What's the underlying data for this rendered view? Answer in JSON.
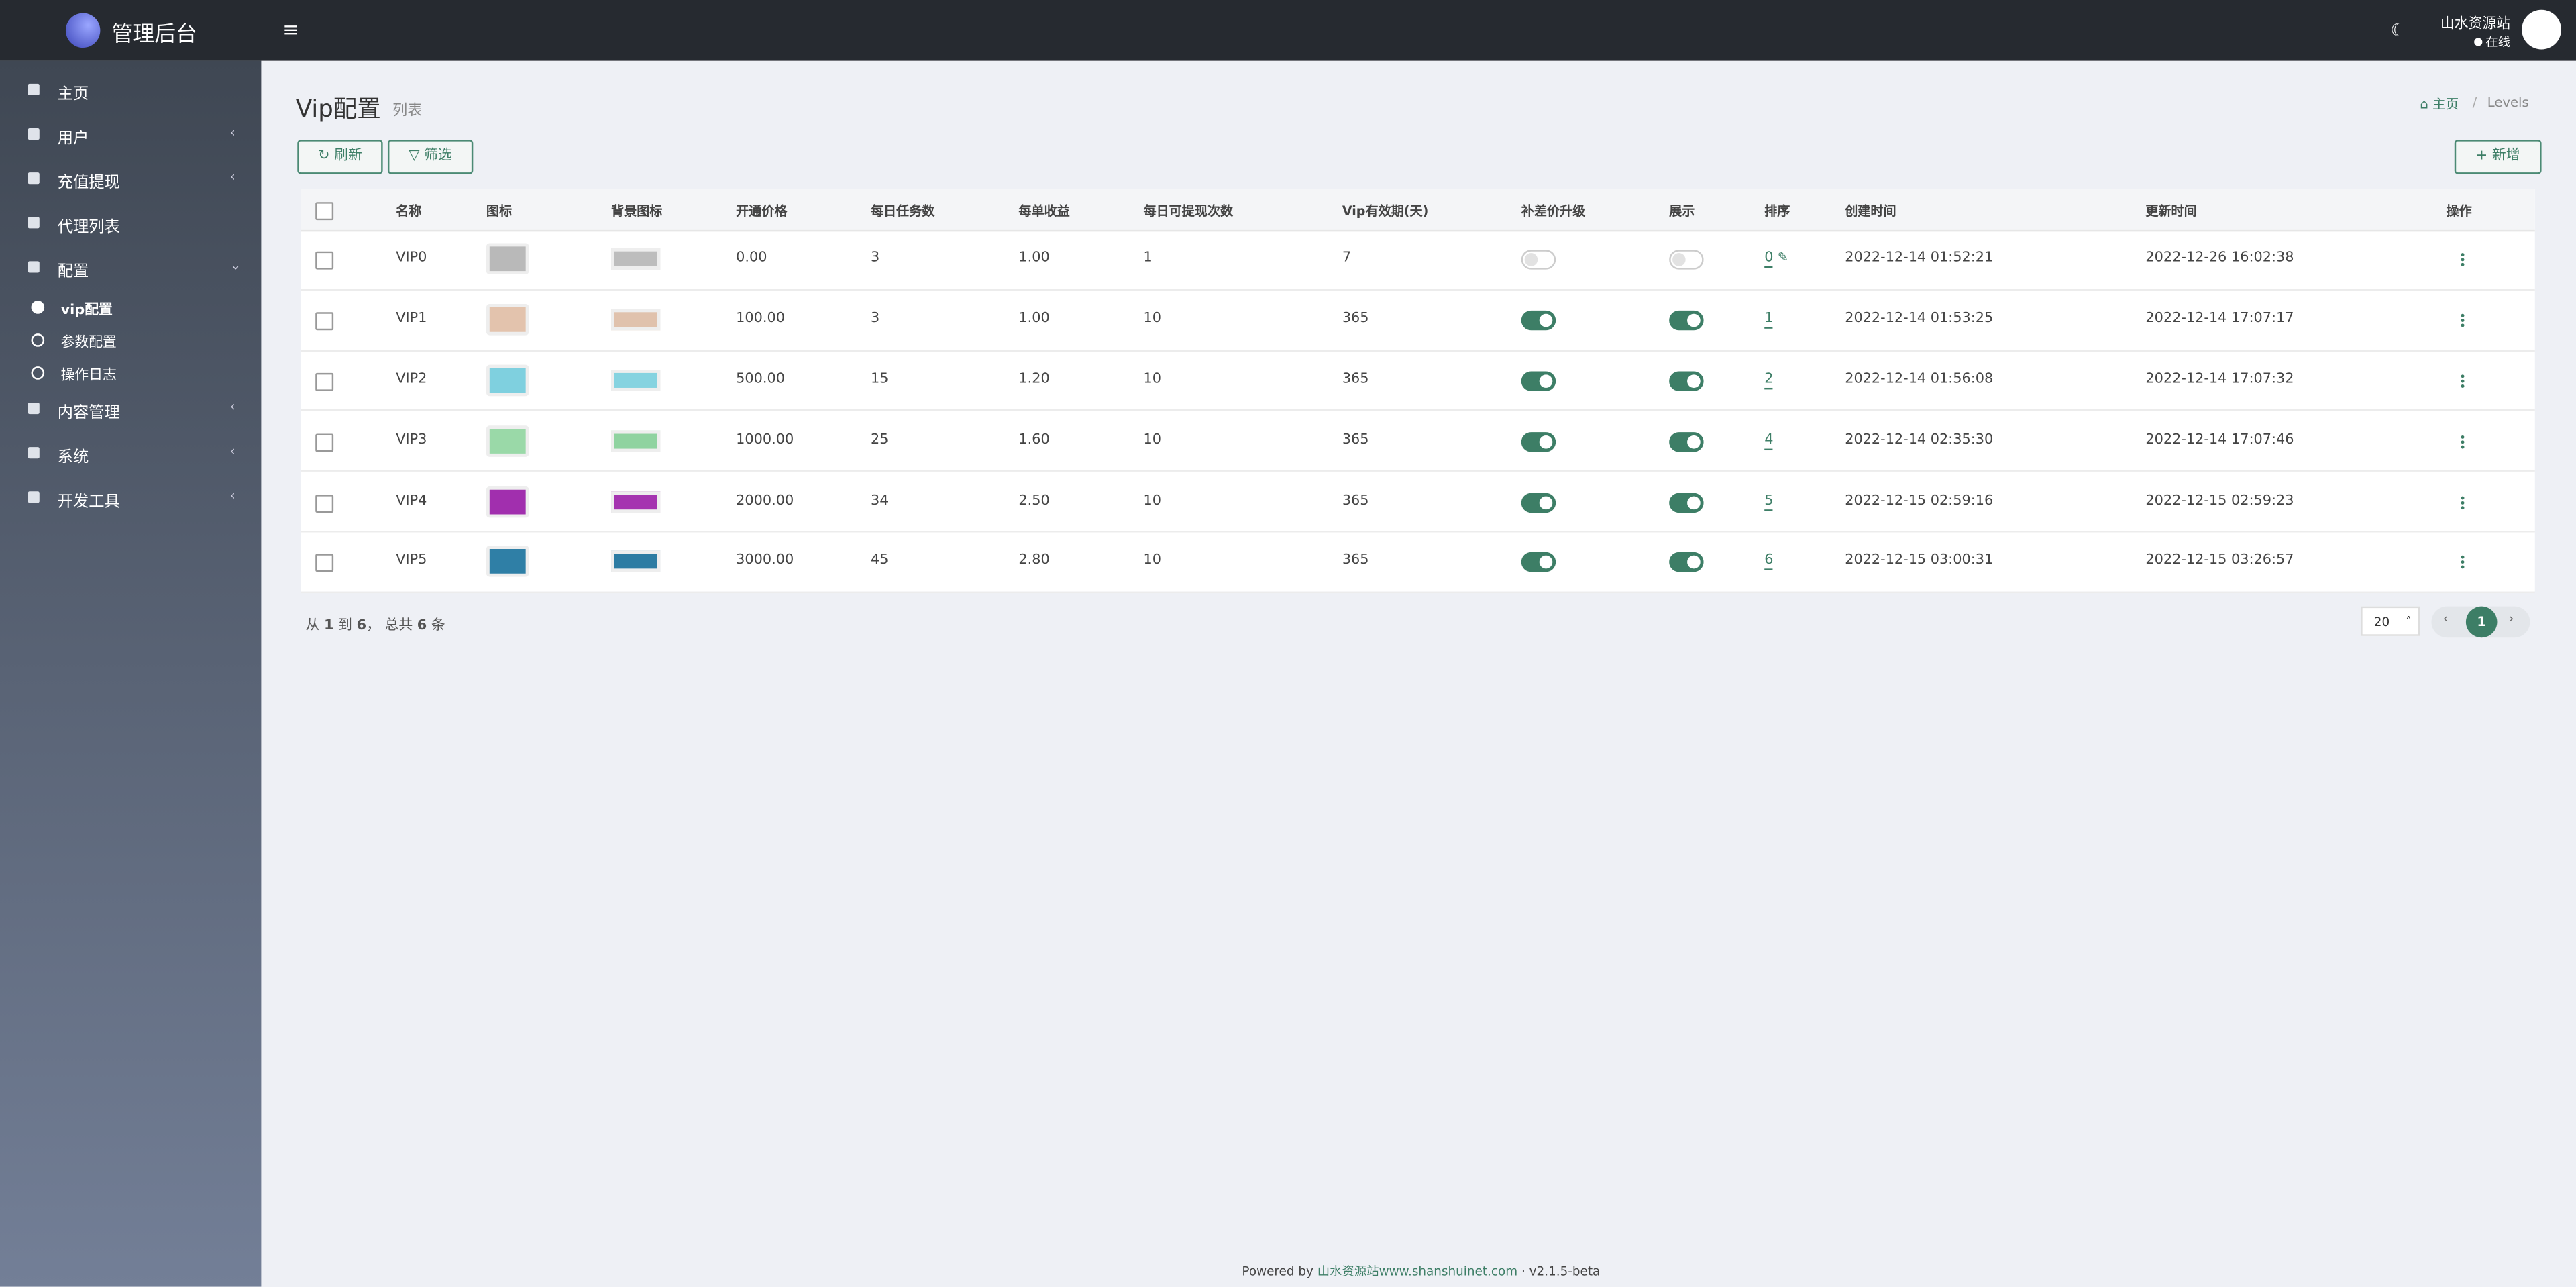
{
  "brand": "管理后台",
  "menu": {
    "items": [
      "主页",
      "用户",
      "充值提现",
      "代理列表",
      "配置",
      "内容管理",
      "系统",
      "开发工具"
    ],
    "sub": [
      "vip配置",
      "参数配置",
      "操作日志"
    ]
  },
  "user": {
    "name": "山水资源站",
    "status": "在线"
  },
  "header": {
    "title": "Vip配置",
    "subtitle": "列表"
  },
  "breadcrumb": [
    "主页",
    "Levels"
  ],
  "toolbar": {
    "refresh": "刷新",
    "filter": "筛选",
    "add": "新增"
  },
  "table": {
    "columns": [
      "名称",
      "图标",
      "背景图标",
      "开通价格",
      "每日任务数",
      "每单收益",
      "每日可提现次数",
      "Vip有效期(天)",
      "补差价升级",
      "展示",
      "排序",
      "创建时间",
      "更新时间",
      "操作"
    ],
    "rows": [
      {
        "name": "VIP0",
        "icon_color": "#b9b9b9",
        "bg_color": "#bdbdbd",
        "price": "0.00",
        "tasks": 3,
        "earning": "1.00",
        "withdraws": 1,
        "days": 7,
        "upgrade": false,
        "show": false,
        "sort": 0,
        "created": "2022-12-14 01:52:21",
        "updated": "2022-12-26 16:02:38"
      },
      {
        "name": "VIP1",
        "icon_color": "#e3c3ad",
        "bg_color": "#e0c2ad",
        "price": "100.00",
        "tasks": 3,
        "earning": "1.00",
        "withdraws": 10,
        "days": 365,
        "upgrade": true,
        "show": true,
        "sort": 1,
        "created": "2022-12-14 01:53:25",
        "updated": "2022-12-14 17:07:17"
      },
      {
        "name": "VIP2",
        "icon_color": "#7fd0df",
        "bg_color": "#86d3e0",
        "price": "500.00",
        "tasks": 15,
        "earning": "1.20",
        "withdraws": 10,
        "days": 365,
        "upgrade": true,
        "show": true,
        "sort": 2,
        "created": "2022-12-14 01:56:08",
        "updated": "2022-12-14 17:07:32"
      },
      {
        "name": "VIP3",
        "icon_color": "#9ad9a8",
        "bg_color": "#8fd3a0",
        "price": "1000.00",
        "tasks": 25,
        "earning": "1.60",
        "withdraws": 10,
        "days": 365,
        "upgrade": true,
        "show": true,
        "sort": 4,
        "created": "2022-12-14 02:35:30",
        "updated": "2022-12-14 17:07:46"
      },
      {
        "name": "VIP4",
        "icon_color": "#a12fae",
        "bg_color": "#a534b0",
        "price": "2000.00",
        "tasks": 34,
        "earning": "2.50",
        "withdraws": 10,
        "days": 365,
        "upgrade": true,
        "show": true,
        "sort": 5,
        "created": "2022-12-15 02:59:16",
        "updated": "2022-12-15 02:59:23"
      },
      {
        "name": "VIP5",
        "icon_color": "#2f7fa6",
        "bg_color": "#2d7ca3",
        "price": "3000.00",
        "tasks": 45,
        "earning": "2.80",
        "withdraws": 10,
        "days": 365,
        "upgrade": true,
        "show": true,
        "sort": 6,
        "created": "2022-12-15 03:00:31",
        "updated": "2022-12-15 03:26:57"
      }
    ]
  },
  "pagination": {
    "from_word": "从",
    "from": 1,
    "to_word": "到",
    "to": 6,
    "total_word": "， 总共",
    "total": 6,
    "unit": "条",
    "page_size": "20",
    "page": "1"
  },
  "footer": {
    "powered": "Powered by",
    "link": "山水资源站www.shanshuinet.com",
    "version": "v2.1.5-beta"
  }
}
